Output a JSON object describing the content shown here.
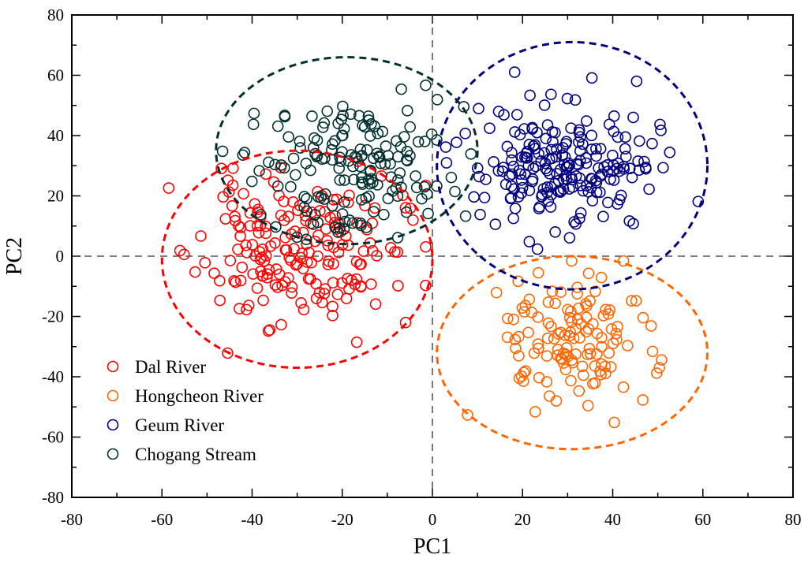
{
  "chart_data": {
    "type": "scatter",
    "title": "",
    "xlabel": "PC1",
    "ylabel": "PC2",
    "xlim": [
      -80,
      80
    ],
    "ylim": [
      -80,
      80
    ],
    "x_major_ticks": [
      -80,
      -60,
      -40,
      -20,
      0,
      20,
      40,
      60,
      80
    ],
    "y_major_ticks": [
      -80,
      -60,
      -40,
      -20,
      0,
      20,
      40,
      60,
      80
    ],
    "x_minor_step": 10,
    "y_minor_step": 10,
    "grid": false,
    "zero_lines": true,
    "legend_position": "bottom-left",
    "marker": "open-circle",
    "series": [
      {
        "name": "Dal River",
        "color": "#ff0000",
        "seed": 11,
        "n": 190,
        "center": [
          -30,
          2
        ],
        "spread": [
          11,
          12
        ],
        "ellipse": {
          "center": [
            -30,
            -1
          ],
          "radii": [
            30,
            36
          ]
        }
      },
      {
        "name": "Hongcheon River",
        "color": "#ff6600",
        "seed": 23,
        "n": 125,
        "center": [
          31,
          -28
        ],
        "spread": [
          9,
          11
        ],
        "ellipse": {
          "center": [
            31,
            -32
          ],
          "radii": [
            30,
            32
          ]
        }
      },
      {
        "name": "Geum River",
        "color": "#000080",
        "seed": 37,
        "n": 210,
        "center": [
          30,
          30
        ],
        "spread": [
          10,
          10
        ],
        "ellipse": {
          "center": [
            31,
            30
          ],
          "radii": [
            30,
            41
          ]
        }
      },
      {
        "name": "Chogang Stream",
        "color": "#003030",
        "seed": 53,
        "n": 165,
        "center": [
          -18,
          30
        ],
        "spread": [
          11,
          11
        ],
        "ellipse": {
          "center": [
            -19,
            35
          ],
          "radii": [
            29,
            31
          ]
        }
      }
    ]
  }
}
